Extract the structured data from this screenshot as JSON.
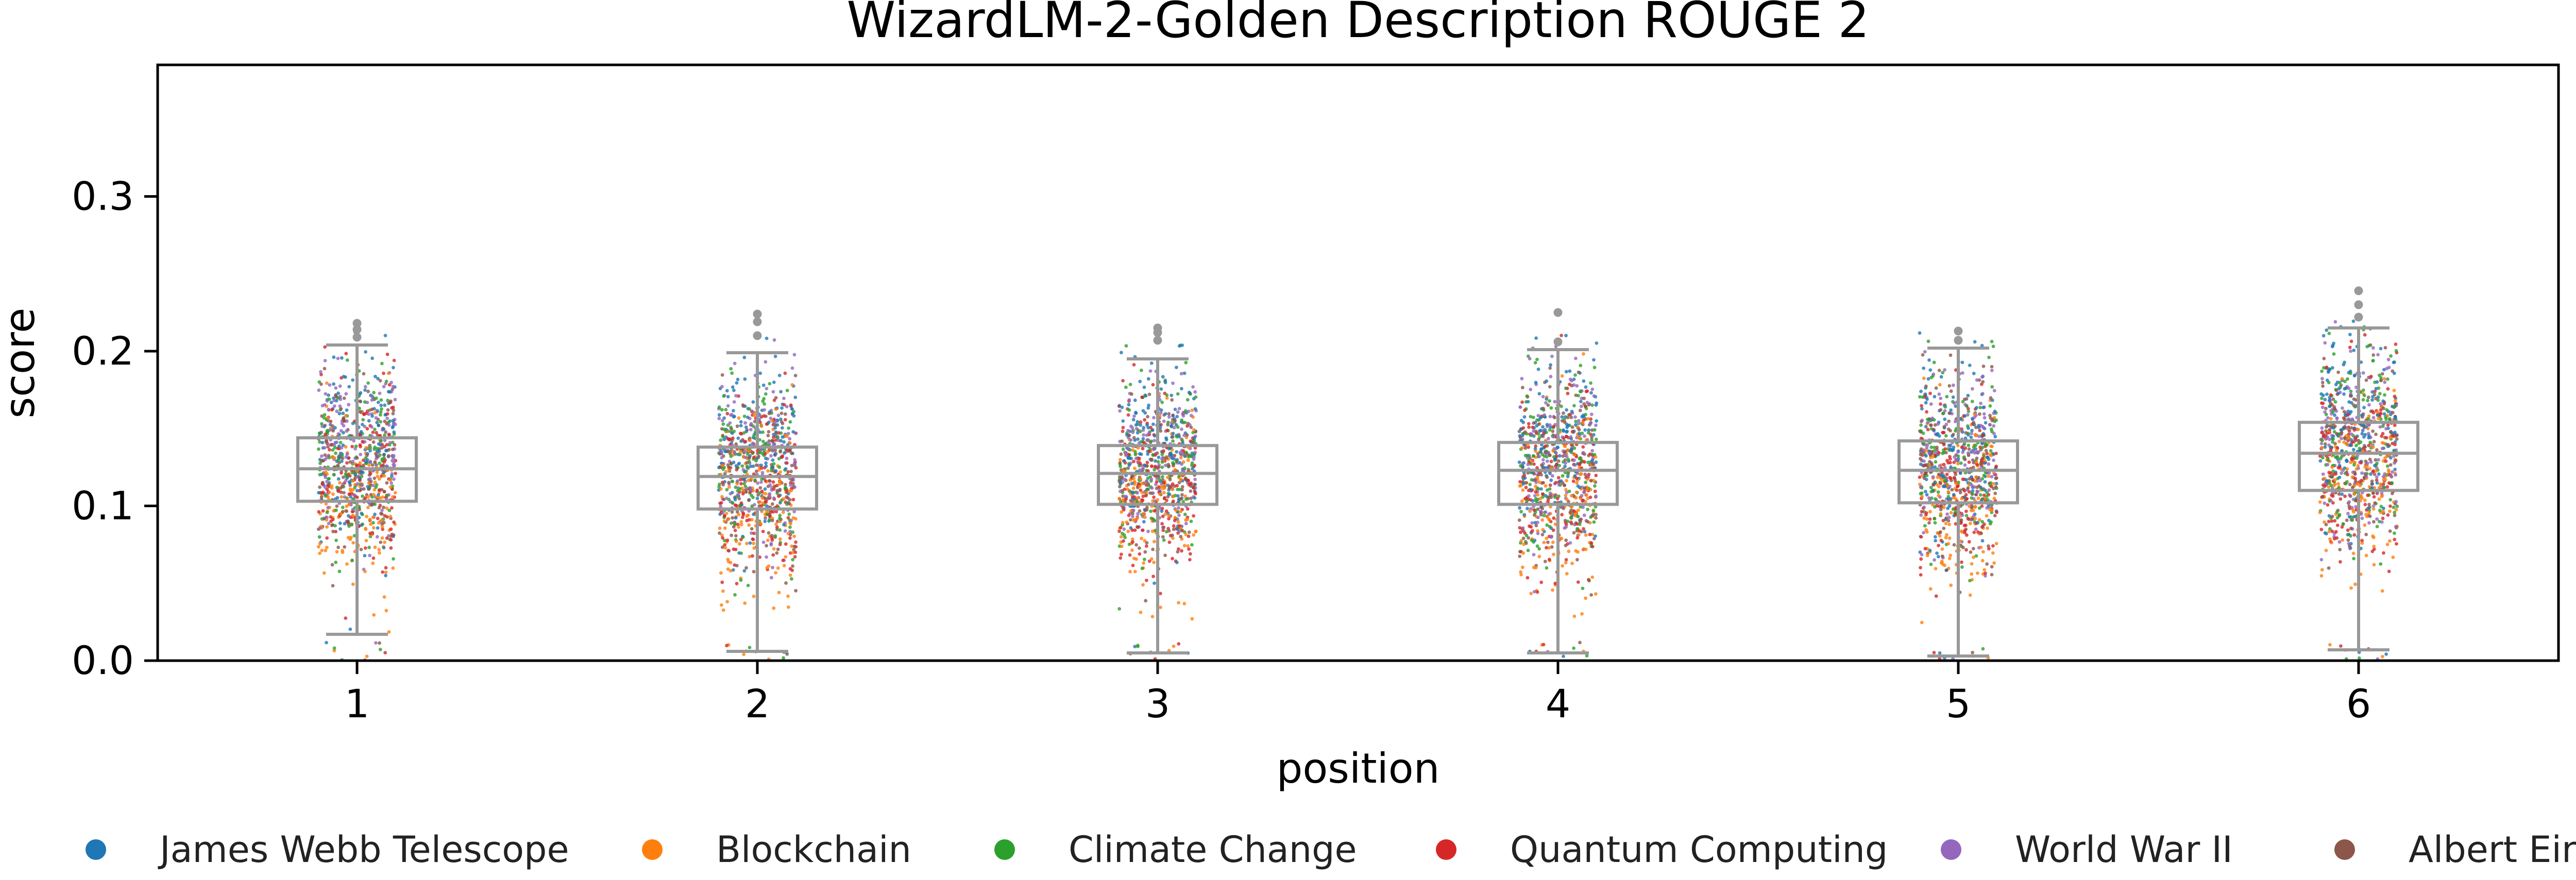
{
  "chart_data": {
    "type": "box",
    "title": "WizardLM-2-Golden Description ROUGE 2",
    "xlabel": "position",
    "ylabel": "score",
    "categories": [
      "1",
      "2",
      "3",
      "4",
      "5",
      "6"
    ],
    "ylim": [
      0,
      0.385
    ],
    "yticks": [
      0.0,
      0.1,
      0.2,
      0.3
    ],
    "ytick_labels": [
      "0.0",
      "0.1",
      "0.2",
      "0.3"
    ],
    "grid": false,
    "legend_position": "bottom",
    "boxes": [
      {
        "category": "1",
        "whisker_low": 0.017,
        "q1": 0.103,
        "median": 0.124,
        "q3": 0.144,
        "whisker_high": 0.204,
        "outliers": [
          0.209,
          0.214,
          0.218
        ]
      },
      {
        "category": "2",
        "whisker_low": 0.006,
        "q1": 0.098,
        "median": 0.119,
        "q3": 0.138,
        "whisker_high": 0.199,
        "outliers": [
          0.21,
          0.219,
          0.224
        ]
      },
      {
        "category": "3",
        "whisker_low": 0.005,
        "q1": 0.101,
        "median": 0.121,
        "q3": 0.139,
        "whisker_high": 0.195,
        "outliers": [
          0.207,
          0.212,
          0.215
        ]
      },
      {
        "category": "4",
        "whisker_low": 0.005,
        "q1": 0.101,
        "median": 0.123,
        "q3": 0.141,
        "whisker_high": 0.201,
        "outliers": [
          0.206,
          0.225
        ]
      },
      {
        "category": "5",
        "whisker_low": 0.003,
        "q1": 0.102,
        "median": 0.123,
        "q3": 0.142,
        "whisker_high": 0.202,
        "outliers": [
          0.207,
          0.213
        ]
      },
      {
        "category": "6",
        "whisker_low": 0.007,
        "q1": 0.11,
        "median": 0.134,
        "q3": 0.154,
        "whisker_high": 0.215,
        "outliers": [
          0.222,
          0.23,
          0.239
        ]
      }
    ],
    "series": [
      {
        "name": "James Webb Telescope",
        "color": "#1f77b4"
      },
      {
        "name": "Blockchain",
        "color": "#ff7f0e"
      },
      {
        "name": "Climate Change",
        "color": "#2ca02c"
      },
      {
        "name": "Quantum Computing",
        "color": "#d62728"
      },
      {
        "name": "World War II",
        "color": "#9467bd"
      },
      {
        "name": "Albert Einstein",
        "color": "#8c564b"
      }
    ],
    "box_color": "#999999"
  }
}
